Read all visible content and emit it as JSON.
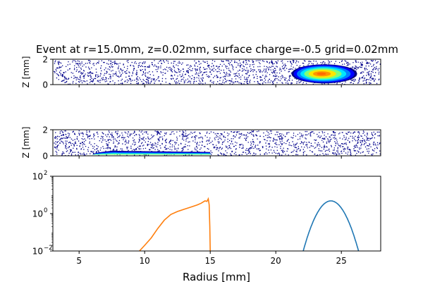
{
  "title": "Event at r=15.0mm, z=0.02mm, surface charge=-0.5 grid=0.02mm",
  "chart_data": [
    {
      "type": "heatmap",
      "name": "top-panel",
      "ylabel": "Z [mm]",
      "xlim": [
        3,
        28
      ],
      "ylim": [
        0,
        2
      ],
      "yticks": [
        "0",
        "2"
      ],
      "blob": {
        "center_r": 23.7,
        "center_z": 0.85,
        "extent_r": [
          21.5,
          26.5
        ],
        "extent_z": [
          0.2,
          1.7
        ]
      }
    },
    {
      "type": "heatmap",
      "name": "middle-panel",
      "ylabel": "Z [mm]",
      "xlim": [
        3,
        28
      ],
      "ylim": [
        0,
        2
      ],
      "yticks": [
        "0",
        "2"
      ],
      "blob": {
        "extent_r": [
          6.0,
          15.0
        ],
        "peak_r": 8.0,
        "max_z": 0.35
      }
    },
    {
      "type": "line",
      "name": "bottom-panel",
      "xlabel": "Radius [mm]",
      "xlim": [
        3,
        28
      ],
      "xticks": [
        "5",
        "10",
        "15",
        "20",
        "25"
      ],
      "yscale": "log",
      "ylim": [
        0.01,
        100
      ],
      "yticks": [
        {
          "exp": "−2",
          "base": "10"
        },
        {
          "exp": "0",
          "base": "10"
        },
        {
          "exp": "2",
          "base": "10"
        }
      ],
      "series": [
        {
          "name": "orange",
          "color": "#ff7f0e",
          "x": [
            9.6,
            10.0,
            10.5,
            11.0,
            11.5,
            12.0,
            12.5,
            13.0,
            13.5,
            14.0,
            14.3,
            14.6,
            14.75,
            14.85,
            14.92,
            14.97,
            15.0
          ],
          "y": [
            0.01,
            0.02,
            0.05,
            0.16,
            0.45,
            0.9,
            1.3,
            1.7,
            2.2,
            2.9,
            3.6,
            4.8,
            4.5,
            6.2,
            3.0,
            0.2,
            0.01
          ]
        },
        {
          "name": "blue",
          "color": "#1f77b4",
          "center": 24.2,
          "sigma": 0.6,
          "peak": 4.8,
          "xrange": [
            22.0,
            26.4
          ]
        }
      ]
    }
  ]
}
